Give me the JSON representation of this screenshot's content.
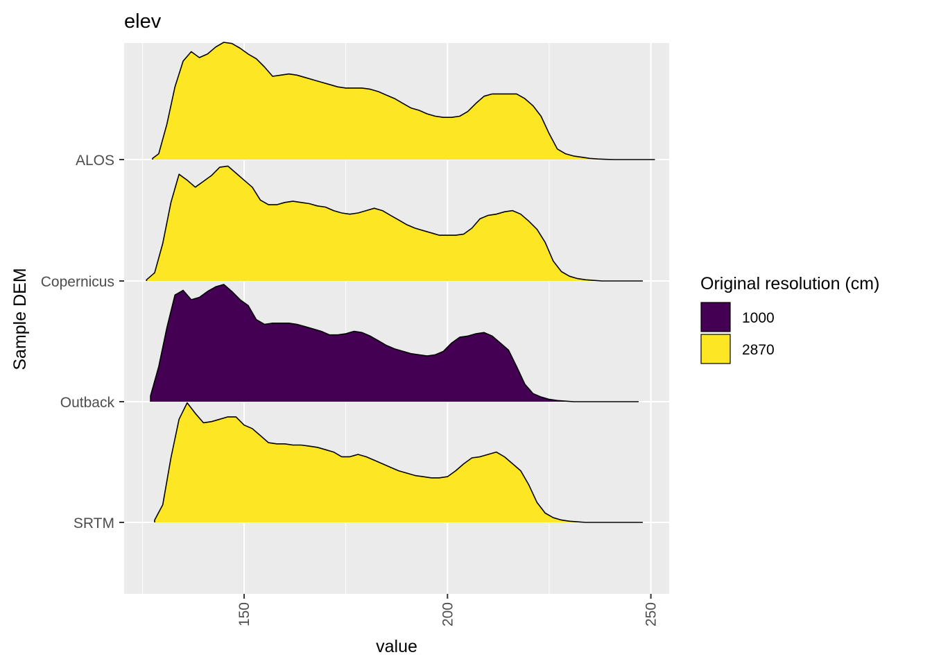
{
  "chart_data": {
    "type": "ridgeline-density",
    "title": "elev",
    "xlabel": "value",
    "ylabel": "Sample DEM",
    "xlim": [
      120.5,
      254.5
    ],
    "x_ticks": [
      150,
      200,
      250
    ],
    "x_minor_ticks": [
      125,
      175,
      225
    ],
    "categories": [
      "ALOS",
      "Copernicus",
      "Outback",
      "SRTM"
    ],
    "grid": true,
    "legend": {
      "title": "Original resolution (cm)",
      "position": "right",
      "entries": [
        {
          "label": "1000",
          "color": "#440154"
        },
        {
          "label": "2870",
          "color": "#FDE725"
        }
      ]
    },
    "series": [
      {
        "name": "ALOS",
        "resolution": "2870",
        "x": [
          127.5,
          129,
          131,
          133,
          135,
          137,
          139,
          141,
          143,
          145,
          147,
          149,
          151,
          153,
          155,
          157,
          159,
          161,
          163,
          165,
          167,
          169,
          171,
          173,
          175,
          177,
          179,
          181,
          183,
          185,
          187,
          189,
          191,
          193,
          195,
          197,
          199,
          201,
          203,
          205,
          207,
          209,
          211,
          213,
          215,
          217,
          219,
          221,
          223,
          225,
          227,
          229,
          231,
          233,
          235,
          237,
          239,
          241,
          243,
          245,
          247,
          249,
          251
        ],
        "density": [
          0.01,
          0.05,
          0.3,
          0.62,
          0.84,
          0.92,
          0.87,
          0.9,
          0.96,
          1.0,
          0.99,
          0.95,
          0.9,
          0.86,
          0.79,
          0.71,
          0.72,
          0.73,
          0.72,
          0.7,
          0.68,
          0.66,
          0.64,
          0.62,
          0.61,
          0.61,
          0.61,
          0.6,
          0.58,
          0.55,
          0.52,
          0.48,
          0.44,
          0.42,
          0.39,
          0.37,
          0.36,
          0.36,
          0.37,
          0.41,
          0.48,
          0.54,
          0.56,
          0.56,
          0.56,
          0.56,
          0.52,
          0.46,
          0.37,
          0.22,
          0.09,
          0.05,
          0.03,
          0.02,
          0.01,
          0.005,
          0.002,
          0.0,
          0.0,
          0.0,
          0.0,
          0.0,
          0.0
        ]
      },
      {
        "name": "Copernicus",
        "resolution": "2870",
        "x": [
          126,
          128,
          130,
          132,
          134,
          136,
          138,
          140,
          142,
          144,
          146,
          148,
          150,
          152,
          154,
          156,
          158,
          160,
          162,
          164,
          166,
          168,
          170,
          172,
          174,
          176,
          178,
          180,
          182,
          184,
          186,
          188,
          190,
          192,
          194,
          196,
          198,
          200,
          202,
          204,
          206,
          208,
          210,
          212,
          214,
          216,
          218,
          220,
          222,
          224,
          226,
          228,
          230,
          232,
          234,
          236,
          238,
          240,
          242,
          244,
          246,
          248
        ],
        "density": [
          0.01,
          0.07,
          0.32,
          0.67,
          0.91,
          0.86,
          0.8,
          0.85,
          0.9,
          0.97,
          0.98,
          0.92,
          0.86,
          0.8,
          0.69,
          0.65,
          0.65,
          0.67,
          0.68,
          0.67,
          0.66,
          0.64,
          0.63,
          0.6,
          0.58,
          0.57,
          0.58,
          0.6,
          0.62,
          0.6,
          0.56,
          0.52,
          0.48,
          0.45,
          0.43,
          0.41,
          0.39,
          0.39,
          0.39,
          0.4,
          0.45,
          0.53,
          0.56,
          0.57,
          0.59,
          0.6,
          0.57,
          0.51,
          0.44,
          0.33,
          0.17,
          0.08,
          0.04,
          0.02,
          0.01,
          0.005,
          0.0,
          0.0,
          0.0,
          0.0,
          0.0,
          0.0
        ]
      },
      {
        "name": "Outback",
        "resolution": "1000",
        "x": [
          127,
          129,
          131,
          133,
          135,
          137,
          139,
          141,
          143,
          145,
          147,
          149,
          151,
          153,
          155,
          157,
          159,
          161,
          163,
          165,
          167,
          169,
          171,
          173,
          175,
          177,
          179,
          181,
          183,
          185,
          187,
          189,
          191,
          193,
          195,
          197,
          199,
          201,
          203,
          205,
          207,
          209,
          211,
          213,
          215,
          217,
          219,
          221,
          223,
          225,
          227,
          229,
          231,
          233,
          235,
          237,
          239,
          241,
          243,
          245,
          247
        ],
        "density": [
          0.05,
          0.3,
          0.63,
          0.91,
          0.95,
          0.87,
          0.89,
          0.94,
          0.98,
          1.0,
          0.94,
          0.87,
          0.82,
          0.7,
          0.66,
          0.67,
          0.67,
          0.67,
          0.66,
          0.64,
          0.62,
          0.6,
          0.57,
          0.57,
          0.58,
          0.6,
          0.59,
          0.56,
          0.52,
          0.48,
          0.45,
          0.43,
          0.41,
          0.4,
          0.39,
          0.4,
          0.43,
          0.5,
          0.55,
          0.56,
          0.58,
          0.59,
          0.56,
          0.5,
          0.44,
          0.3,
          0.15,
          0.07,
          0.04,
          0.02,
          0.01,
          0.005,
          0.0,
          0.0,
          0.0,
          0.0,
          0.0,
          0.0,
          0.0,
          0.0,
          0.0
        ]
      },
      {
        "name": "SRTM",
        "resolution": "2870",
        "x": [
          128,
          130,
          132,
          134,
          136,
          138,
          140,
          142,
          144,
          146,
          148,
          150,
          152,
          154,
          156,
          158,
          160,
          162,
          164,
          166,
          168,
          170,
          172,
          174,
          176,
          178,
          180,
          182,
          184,
          186,
          188,
          190,
          192,
          194,
          196,
          198,
          200,
          202,
          204,
          206,
          208,
          210,
          212,
          214,
          216,
          218,
          220,
          222,
          224,
          226,
          228,
          230,
          232,
          234,
          236,
          238,
          240,
          242,
          244,
          246,
          248
        ],
        "density": [
          0.02,
          0.15,
          0.55,
          0.88,
          1.02,
          0.93,
          0.85,
          0.86,
          0.88,
          0.9,
          0.9,
          0.83,
          0.8,
          0.74,
          0.68,
          0.67,
          0.67,
          0.66,
          0.66,
          0.65,
          0.64,
          0.62,
          0.6,
          0.56,
          0.56,
          0.58,
          0.56,
          0.53,
          0.5,
          0.47,
          0.44,
          0.42,
          0.4,
          0.39,
          0.38,
          0.38,
          0.39,
          0.44,
          0.5,
          0.55,
          0.56,
          0.58,
          0.6,
          0.56,
          0.5,
          0.44,
          0.32,
          0.17,
          0.08,
          0.04,
          0.02,
          0.01,
          0.005,
          0.0,
          0.0,
          0.0,
          0.0,
          0.0,
          0.0,
          0.0,
          0.0
        ]
      }
    ]
  }
}
